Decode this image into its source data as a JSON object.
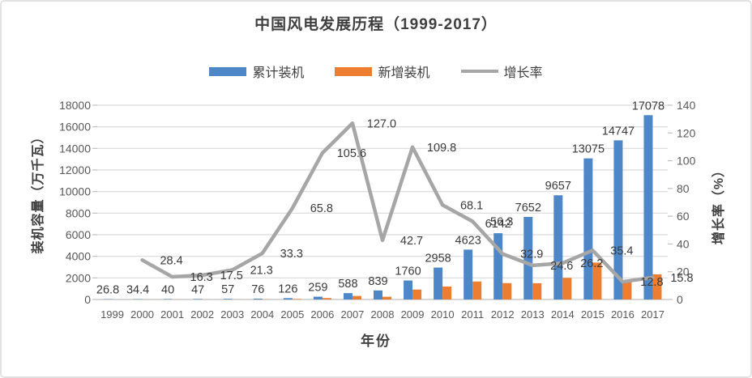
{
  "chart_data": {
    "type": "bar+line combo",
    "title": "中国风电发展历程（1999-2017）",
    "categories": [
      "1999",
      "2000",
      "2001",
      "2002",
      "2003",
      "2004",
      "2005",
      "2006",
      "2007",
      "2008",
      "2009",
      "2010",
      "2011",
      "2012",
      "2013",
      "2014",
      "2015",
      "2016",
      "2017"
    ],
    "series": [
      {
        "name": "累计装机",
        "type": "bar",
        "axis": "left",
        "color": "#4E87C8",
        "values": [
          26.8,
          34.4,
          40,
          47,
          57,
          76,
          126,
          259,
          588,
          839,
          1760,
          2958,
          4623,
          6142,
          7652,
          9657,
          13075,
          14747,
          17078
        ],
        "labels": [
          "26.8",
          "34.4",
          "40",
          "47",
          "57",
          "76",
          "126",
          "259",
          "588",
          "839",
          "1760",
          "2958",
          "4623",
          "6142",
          "7652",
          "9657",
          "13075",
          "14747",
          "17078"
        ]
      },
      {
        "name": "新增装机",
        "type": "bar",
        "axis": "left",
        "color": "#ED7D31",
        "values": [
          null,
          7.6,
          5.6,
          7,
          10,
          19,
          50,
          133,
          329,
          251,
          921,
          1198,
          1665,
          1519,
          1510,
          2005,
          3418,
          1672,
          2331
        ],
        "labels": [
          null,
          null,
          null,
          null,
          null,
          null,
          null,
          null,
          null,
          null,
          null,
          null,
          null,
          null,
          null,
          null,
          null,
          null,
          null
        ]
      },
      {
        "name": "增长率",
        "type": "line",
        "axis": "right",
        "color": "#A6A6A6",
        "values": [
          null,
          28.4,
          16.3,
          17.5,
          21.3,
          33.3,
          65.8,
          105.6,
          127.0,
          42.7,
          109.8,
          68.1,
          56.3,
          32.9,
          24.6,
          26.2,
          35.4,
          12.8,
          15.8
        ],
        "labels": [
          null,
          "28.4",
          "16.3",
          "17.5",
          "21.3",
          "33.3",
          "65.8",
          "105.6",
          "127.0",
          "42.7",
          "109.8",
          "68.1",
          "56.3",
          "32.9",
          "24.6",
          "26.2",
          "35.4",
          "12.8",
          "15.8"
        ]
      }
    ],
    "left_axis": {
      "title": "装机容量（万千瓦）",
      "min": 0,
      "max": 18000,
      "step": 2000,
      "ticks": [
        "0",
        "2000",
        "4000",
        "6000",
        "8000",
        "10000",
        "12000",
        "14000",
        "16000",
        "18000"
      ]
    },
    "right_axis": {
      "title": "增长率（%）",
      "min": 0,
      "max": 140,
      "step": 20,
      "ticks": [
        "0",
        "20",
        "40",
        "60",
        "80",
        "100",
        "120",
        "140"
      ]
    },
    "x_axis": {
      "title": "年份"
    },
    "grid": "horizontal",
    "legend_position": "top"
  },
  "legend": {
    "items": [
      {
        "label": "累计装机",
        "color": "#4E87C8",
        "marker": "bar"
      },
      {
        "label": "新增装机",
        "color": "#ED7D31",
        "marker": "bar"
      },
      {
        "label": "增长率",
        "color": "#A6A6A6",
        "marker": "line"
      }
    ]
  }
}
